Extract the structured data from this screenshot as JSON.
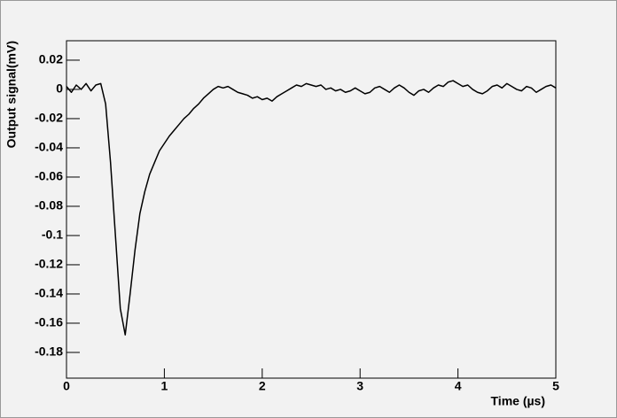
{
  "chart_data": {
    "type": "line",
    "x_label": "Time (µs)",
    "y_label": "Output signal(mV)",
    "x": [
      0,
      0.05,
      0.1,
      0.15,
      0.2,
      0.25,
      0.3,
      0.35,
      0.4,
      0.45,
      0.5,
      0.55,
      0.6,
      0.65,
      0.7,
      0.75,
      0.8,
      0.85,
      0.9,
      0.95,
      1,
      1.05,
      1.1,
      1.15,
      1.2,
      1.25,
      1.3,
      1.35,
      1.4,
      1.45,
      1.5,
      1.55,
      1.6,
      1.65,
      1.7,
      1.75,
      1.8,
      1.85,
      1.9,
      1.95,
      2,
      2.05,
      2.1,
      2.15,
      2.2,
      2.25,
      2.3,
      2.35,
      2.4,
      2.45,
      2.5,
      2.55,
      2.6,
      2.65,
      2.7,
      2.75,
      2.8,
      2.85,
      2.9,
      2.95,
      3,
      3.05,
      3.1,
      3.15,
      3.2,
      3.25,
      3.3,
      3.35,
      3.4,
      3.45,
      3.5,
      3.55,
      3.6,
      3.65,
      3.7,
      3.75,
      3.8,
      3.85,
      3.9,
      3.95,
      4,
      4.05,
      4.1,
      4.15,
      4.2,
      4.25,
      4.3,
      4.35,
      4.4,
      4.45,
      4.5,
      4.55,
      4.6,
      4.65,
      4.7,
      4.75,
      4.8,
      4.85,
      4.9,
      4.95,
      5
    ],
    "values": [
      0.002,
      -0.002,
      0.003,
      0,
      0.004,
      -0.001,
      0.003,
      0.004,
      -0.01,
      -0.05,
      -0.1,
      -0.15,
      -0.168,
      -0.14,
      -0.11,
      -0.085,
      -0.07,
      -0.058,
      -0.05,
      -0.042,
      -0.037,
      -0.032,
      -0.028,
      -0.024,
      -0.02,
      -0.017,
      -0.013,
      -0.01,
      -0.006,
      -0.003,
      0,
      0.002,
      0.001,
      0.002,
      0,
      -0.002,
      -0.003,
      -0.004,
      -0.006,
      -0.005,
      -0.007,
      -0.006,
      -0.008,
      -0.005,
      -0.003,
      -0.001,
      0.001,
      0.003,
      0.002,
      0.004,
      0.003,
      0.002,
      0.003,
      0,
      0.001,
      -0.001,
      0,
      -0.002,
      -0.001,
      0.001,
      -0.001,
      -0.003,
      -0.002,
      0.001,
      0.002,
      0,
      -0.002,
      0.001,
      0.003,
      0.001,
      -0.002,
      -0.004,
      -0.001,
      0,
      -0.002,
      0.001,
      0.003,
      0.002,
      0.005,
      0.006,
      0.004,
      0.002,
      0.003,
      0,
      -0.002,
      -0.003,
      -0.001,
      0.002,
      0.003,
      0.001,
      0.004,
      0.002,
      0,
      -0.001,
      0.002,
      0.001,
      -0.002,
      0,
      0.002,
      0.003,
      0.001
    ],
    "color": "#000000",
    "xlim": [
      0,
      5
    ],
    "xticks": [
      0,
      1,
      2,
      3,
      4,
      5
    ],
    "ylim": [
      -0.1976,
      0.0333
    ],
    "yticks": [
      -0.18,
      -0.16,
      -0.14,
      -0.12,
      -0.1,
      -0.08,
      -0.06,
      -0.04,
      -0.02,
      0,
      0.02
    ],
    "grid": false
  }
}
